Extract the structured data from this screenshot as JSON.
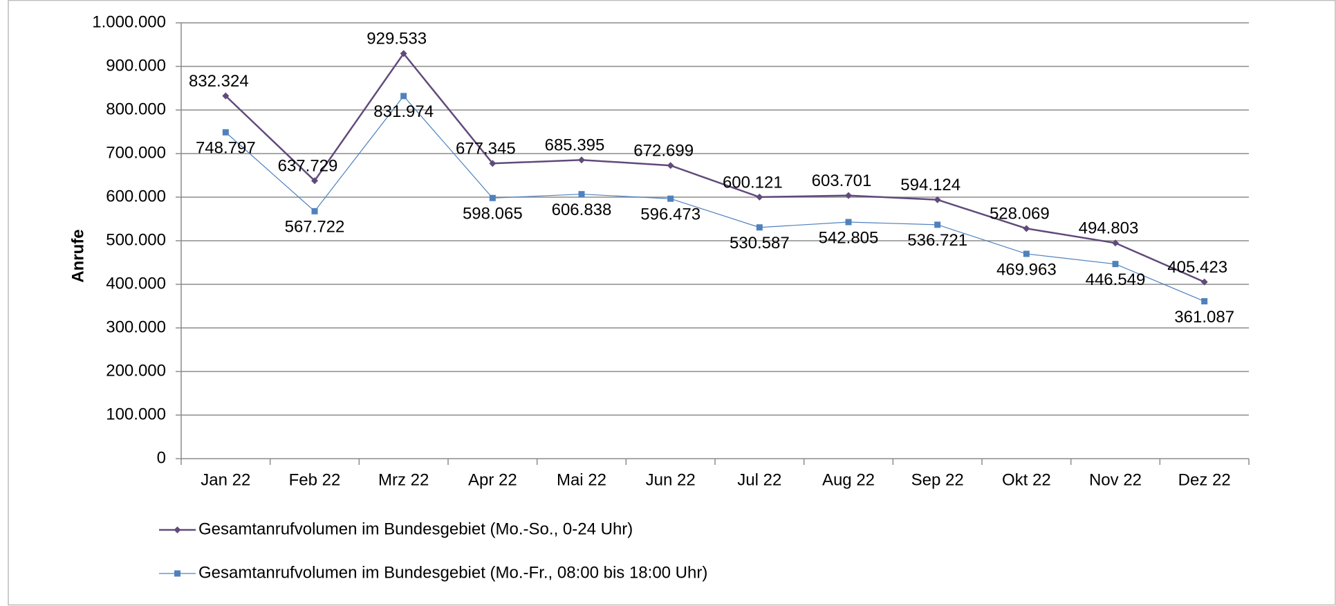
{
  "chart_data": {
    "type": "line",
    "y_label": "Anrufe",
    "categories": [
      "Jan 22",
      "Feb 22",
      "Mrz 22",
      "Apr 22",
      "Mai 22",
      "Jun 22",
      "Jul 22",
      "Aug 22",
      "Sep 22",
      "Okt 22",
      "Nov 22",
      "Dez 22"
    ],
    "series": [
      {
        "name": "Gesamtanrufvolumen im Bundesgebiet (Mo.-So., 0-24 Uhr)",
        "color": "#604a7b",
        "marker": "diamond",
        "values": [
          832324,
          637729,
          929533,
          677345,
          685395,
          672699,
          600121,
          603701,
          594124,
          528069,
          494803,
          405423
        ],
        "value_labels": [
          "832.324",
          "637.729",
          "929.533",
          "677.345",
          "685.395",
          "672.699",
          "600.121",
          "603.701",
          "594.124",
          "528.069",
          "494.803",
          "405.423"
        ]
      },
      {
        "name": "Gesamtanrufvolumen im Bundesgebiet (Mo.-Fr., 08:00 bis 18:00 Uhr)",
        "color": "#4f81bd",
        "marker": "square",
        "values": [
          748797,
          567722,
          831974,
          598065,
          606838,
          596473,
          530587,
          542805,
          536721,
          469963,
          446549,
          361087
        ],
        "value_labels": [
          "748.797",
          "567.722",
          "831.974",
          "598.065",
          "606.838",
          "596.473",
          "530.587",
          "542.805",
          "536.721",
          "469.963",
          "446.549",
          "361.087"
        ]
      }
    ],
    "ylim": [
      0,
      1000000
    ],
    "yticks": [
      0,
      {
        "value": 100000,
        "label": "100.000"
      },
      {
        "value": 200000,
        "label": "200.000"
      },
      {
        "value": 300000,
        "label": "300.000"
      },
      {
        "value": 400000,
        "label": "400.000"
      },
      {
        "value": 500000,
        "label": "500.000"
      },
      {
        "value": 600000,
        "label": "600.000"
      },
      {
        "value": 700000,
        "label": "700.000"
      },
      {
        "value": 800000,
        "label": "800.000"
      },
      {
        "value": 900000,
        "label": "900.000"
      },
      {
        "value": 1000000,
        "label": "1.000.000"
      }
    ],
    "grid": true,
    "legend": "bottom"
  }
}
